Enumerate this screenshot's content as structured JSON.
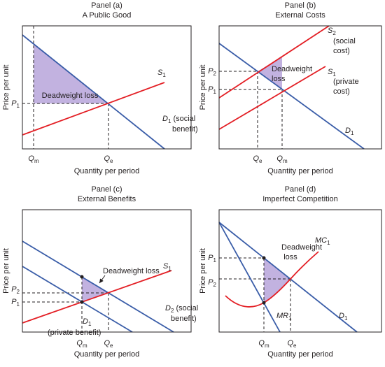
{
  "panels": [
    {
      "heading": "Panel (a)",
      "title": "A Public Good",
      "y_axis": "Price per unit",
      "x_axis": "Quantity per period",
      "labels": [
        {
          "text": "P",
          "sub": "1"
        },
        {
          "text": "Q",
          "sub": "m"
        },
        {
          "text": "Q",
          "sub": "e"
        },
        {
          "text": "S",
          "sub": "1"
        },
        {
          "text": "D",
          "sub": "1",
          "after": " (social"
        },
        {
          "text": "benefit)"
        },
        {
          "text": "Deadweight loss"
        }
      ]
    },
    {
      "heading": "Panel (b)",
      "title": "External Costs",
      "y_axis": "Price per unit",
      "x_axis": "Quantity per period",
      "labels": [
        {
          "text": "P",
          "sub": "2"
        },
        {
          "text": "P",
          "sub": "1"
        },
        {
          "text": "Q",
          "sub": "e"
        },
        {
          "text": "Q",
          "sub": "m"
        },
        {
          "text": "S",
          "sub": "2"
        },
        {
          "text": "(social"
        },
        {
          "text": "cost)"
        },
        {
          "text": "S",
          "sub": "1"
        },
        {
          "text": "(private"
        },
        {
          "text": "cost)"
        },
        {
          "text": "Deadweight"
        },
        {
          "text": "loss"
        },
        {
          "text": "D",
          "sub": "1"
        }
      ]
    },
    {
      "heading": "Panel (c)",
      "title": "External Benefits",
      "y_axis": "Price per unit",
      "x_axis": "Quantity per period",
      "labels": [
        {
          "text": "P",
          "sub": "2"
        },
        {
          "text": "P",
          "sub": "1"
        },
        {
          "text": "Q",
          "sub": "m"
        },
        {
          "text": "Q",
          "sub": "e"
        },
        {
          "text": "S",
          "sub": "1"
        },
        {
          "text": "Deadweight loss"
        },
        {
          "text": "D",
          "sub": "2",
          "after": " (social"
        },
        {
          "text": "benefit)"
        },
        {
          "text": "D",
          "sub": "1"
        },
        {
          "text": "(private benefit)"
        }
      ]
    },
    {
      "heading": "Panel (d)",
      "title": "Imperfect Competition",
      "y_axis": "Price per unit",
      "x_axis": "Quantity per period",
      "labels": [
        {
          "text": "P",
          "sub": "1"
        },
        {
          "text": "P",
          "sub": "2"
        },
        {
          "text": "Q",
          "sub": "m"
        },
        {
          "text": "Q",
          "sub": "e"
        },
        {
          "text": "Deadweight"
        },
        {
          "text": "loss"
        },
        {
          "text": "MC",
          "sub": "1"
        },
        {
          "text": "MR",
          "sub": "1"
        },
        {
          "text": "D",
          "sub": "1"
        }
      ]
    }
  ]
}
